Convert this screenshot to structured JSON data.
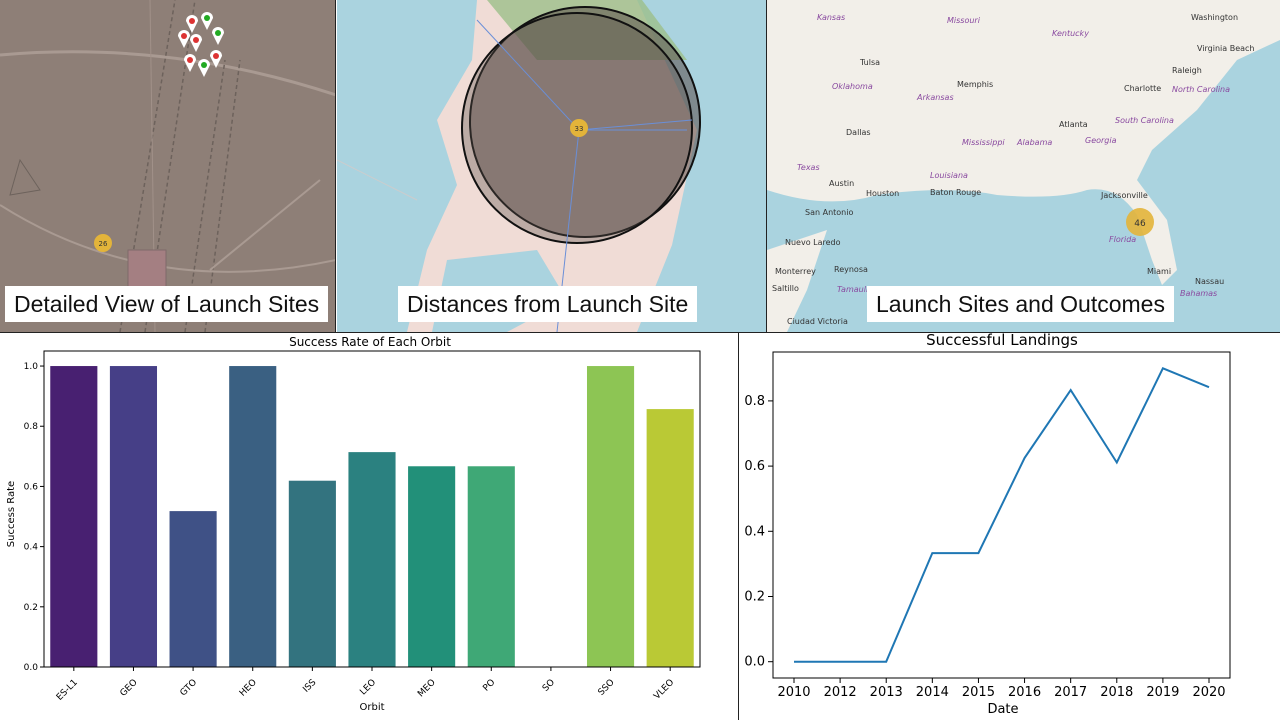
{
  "maps": [
    {
      "caption": "Detailed View of Launch Sites",
      "cluster_count": "26"
    },
    {
      "caption": "Distances from Launch Site",
      "cluster_count": "33"
    },
    {
      "caption": "Launch Sites and Outcomes",
      "cluster_count": "46",
      "cities": [
        "Washington",
        "Virginia Beach",
        "Raleigh",
        "Charlotte",
        "Memphis",
        "Tulsa",
        "Oklahoma",
        "Arkansas",
        "Mississippi",
        "Alabama",
        "Atlanta",
        "Georgia",
        "South Carolina",
        "North Carolina",
        "Kentucky",
        "Missouri",
        "Kansas",
        "Dallas",
        "Texas",
        "Austin",
        "Houston",
        "Baton Rouge",
        "Louisiana",
        "San Antonio",
        "Jacksonville",
        "Florida",
        "Nuevo Laredo",
        "Monterrey",
        "Reynosa",
        "Saltillo",
        "Tamaulipas",
        "Ciudad Victoria",
        "Miami",
        "Nassau",
        "Bahamas"
      ]
    }
  ],
  "chart_data": [
    {
      "type": "bar",
      "title": "Success Rate of Each Orbit",
      "xlabel": "Orbit",
      "ylabel": "Success Rate",
      "categories": [
        "ES-L1",
        "GEO",
        "GTO",
        "HEO",
        "ISS",
        "LEO",
        "MEO",
        "PO",
        "SO",
        "SSO",
        "VLEO"
      ],
      "values": [
        1.0,
        1.0,
        0.518,
        1.0,
        0.619,
        0.714,
        0.667,
        0.667,
        0.0,
        1.0,
        0.857
      ],
      "ylim": [
        0,
        1.05
      ],
      "yticks": [
        "0.0",
        "0.2",
        "0.4",
        "0.6",
        "0.8",
        "1.0"
      ],
      "colors": [
        "#482071",
        "#463f87",
        "#3f5186",
        "#3a6082",
        "#33737f",
        "#2b8180",
        "#229079",
        "#3fa876",
        "#5cb765",
        "#8dc554",
        "#bac935"
      ],
      "grid": false
    },
    {
      "type": "line",
      "title": "Successful Landings",
      "xlabel": "Date",
      "ylabel": "",
      "x": [
        "2010",
        "2012",
        "2013",
        "2014",
        "2015",
        "2016",
        "2017",
        "2018",
        "2019",
        "2020"
      ],
      "values": [
        0.0,
        0.0,
        0.0,
        0.333,
        0.333,
        0.625,
        0.833,
        0.611,
        0.9,
        0.842
      ],
      "ylim": [
        -0.05,
        0.95
      ],
      "yticks": [
        "0.0",
        "0.2",
        "0.4",
        "0.6",
        "0.8"
      ],
      "color": "#1f77b4",
      "grid": false
    }
  ]
}
